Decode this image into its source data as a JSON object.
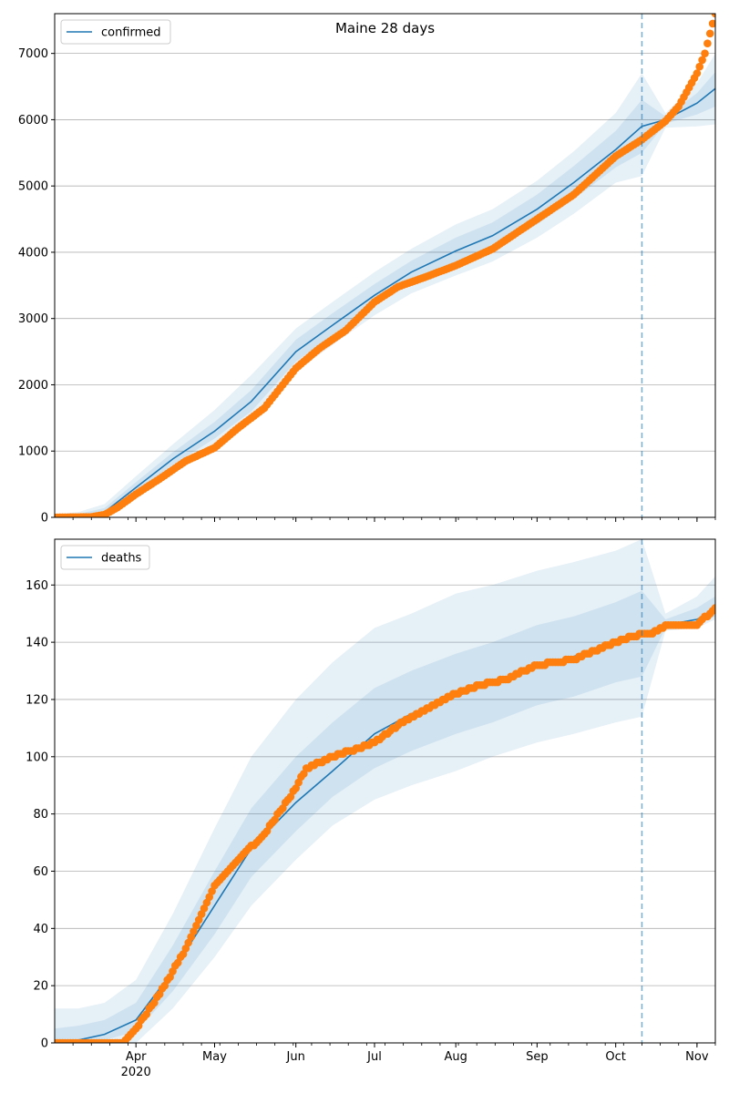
{
  "chart_data": [
    {
      "type": "line",
      "title": "Maine 28 days",
      "legend": {
        "label": "confirmed",
        "placement": "top-left"
      },
      "x_unit": "date",
      "x_range": [
        "2020-03-01",
        "2020-11-08"
      ],
      "ylim": [
        0,
        7600
      ],
      "yticks": [
        0,
        1000,
        2000,
        3000,
        4000,
        5000,
        6000,
        7000
      ],
      "forecast_start": "2020-10-11",
      "grid": "y",
      "colors": {
        "model": "#1f77b4",
        "observed": "#ff7f0e",
        "band": "#1f77b4"
      },
      "model": {
        "x": [
          "2020-03-01",
          "2020-03-10",
          "2020-03-20",
          "2020-04-01",
          "2020-04-15",
          "2020-05-01",
          "2020-05-15",
          "2020-06-01",
          "2020-06-15",
          "2020-07-01",
          "2020-07-15",
          "2020-08-01",
          "2020-08-15",
          "2020-09-01",
          "2020-09-15",
          "2020-10-01",
          "2020-10-11",
          "2020-10-20",
          "2020-11-01",
          "2020-11-08"
        ],
        "y": [
          5,
          10,
          80,
          450,
          880,
          1300,
          1750,
          2500,
          2900,
          3350,
          3700,
          4020,
          4250,
          4650,
          5050,
          5550,
          5900,
          6000,
          6250,
          6470
        ],
        "bands": [
          {
            "lower": [
              0,
              0,
              30,
              330,
              700,
              1080,
              1450,
              2200,
              2600,
              3050,
              3380,
              3650,
              3860,
              4220,
              4580,
              5050,
              5150,
              5880,
              5900,
              5930
            ],
            "upper": [
              50,
              80,
              200,
              620,
              1100,
              1620,
              2150,
              2850,
              3250,
              3700,
              4050,
              4420,
              4650,
              5080,
              5520,
              6100,
              6700,
              6100,
              6550,
              7000
            ]
          },
          {
            "lower": [
              0,
              0,
              50,
              390,
              790,
              1190,
              1600,
              2350,
              2750,
              3200,
              3540,
              3830,
              4050,
              4420,
              4800,
              5280,
              5500,
              5940,
              6080,
              6200
            ],
            "upper": [
              30,
              50,
              140,
              530,
              980,
              1440,
              1920,
              2680,
              3080,
              3520,
              3870,
              4220,
              4450,
              4870,
              5300,
              5830,
              6300,
              6050,
              6400,
              6720
            ]
          }
        ]
      },
      "observed": {
        "x": [
          "2020-03-01",
          "2020-03-15",
          "2020-03-20",
          "2020-03-25",
          "2020-04-01",
          "2020-04-10",
          "2020-04-20",
          "2020-05-01",
          "2020-05-10",
          "2020-05-20",
          "2020-06-01",
          "2020-06-10",
          "2020-06-20",
          "2020-07-01",
          "2020-07-10",
          "2020-07-20",
          "2020-08-01",
          "2020-08-15",
          "2020-09-01",
          "2020-09-15",
          "2020-10-01",
          "2020-10-11",
          "2020-10-20",
          "2020-10-25",
          "2020-11-01",
          "2020-11-04",
          "2020-11-08"
        ],
        "y": [
          0,
          5,
          40,
          150,
          350,
          580,
          850,
          1050,
          1350,
          1650,
          2250,
          2550,
          2820,
          3250,
          3480,
          3620,
          3800,
          4050,
          4500,
          4870,
          5450,
          5700,
          5980,
          6200,
          6700,
          7000,
          7600
        ]
      }
    },
    {
      "type": "line",
      "legend": {
        "label": "deaths",
        "placement": "top-left"
      },
      "x_unit": "date",
      "x_range": [
        "2020-03-01",
        "2020-11-08"
      ],
      "ylim": [
        0,
        176
      ],
      "yticks": [
        0,
        20,
        40,
        60,
        80,
        100,
        120,
        140,
        160
      ],
      "xticks": [
        {
          "date": "2020-04-01",
          "label": "Apr",
          "sublabel": "2020"
        },
        {
          "date": "2020-05-01",
          "label": "May"
        },
        {
          "date": "2020-06-01",
          "label": "Jun"
        },
        {
          "date": "2020-07-01",
          "label": "Jul"
        },
        {
          "date": "2020-08-01",
          "label": "Aug"
        },
        {
          "date": "2020-09-01",
          "label": "Sep"
        },
        {
          "date": "2020-10-01",
          "label": "Oct"
        },
        {
          "date": "2020-11-01",
          "label": "Nov"
        }
      ],
      "forecast_start": "2020-10-11",
      "grid": "y",
      "colors": {
        "model": "#1f77b4",
        "observed": "#ff7f0e",
        "band": "#1f77b4"
      },
      "model": {
        "x": [
          "2020-03-01",
          "2020-03-10",
          "2020-03-20",
          "2020-04-01",
          "2020-04-15",
          "2020-05-01",
          "2020-05-15",
          "2020-06-01",
          "2020-06-15",
          "2020-07-01",
          "2020-07-15",
          "2020-08-01",
          "2020-08-15",
          "2020-09-01",
          "2020-09-15",
          "2020-10-01",
          "2020-10-11",
          "2020-10-20",
          "2020-11-01",
          "2020-11-08"
        ],
        "y": [
          0,
          1,
          3,
          8,
          25,
          48,
          68,
          84,
          95,
          108,
          115,
          121,
          126,
          132,
          135,
          140,
          143,
          146,
          148,
          151
        ],
        "bands": [
          {
            "lower": [
              0,
              0,
              0,
              0,
              12,
              30,
              48,
              64,
              76,
              85,
              90,
              95,
              100,
              105,
              108,
              112,
              114,
              144,
              145,
              148
            ],
            "upper": [
              12,
              12,
              14,
              22,
              45,
              75,
              100,
              120,
              133,
              145,
              150,
              157,
              160,
              165,
              168,
              172,
              176,
              150,
              156,
              163
            ]
          },
          {
            "lower": [
              0,
              0,
              1,
              4,
              18,
              38,
              58,
              74,
              86,
              96,
              102,
              108,
              112,
              118,
              121,
              126,
              128,
              145,
              146,
              149
            ],
            "upper": [
              5,
              6,
              8,
              14,
              34,
              60,
              82,
              100,
              112,
              124,
              130,
              136,
              140,
              146,
              149,
              154,
              158,
              148,
              152,
              156
            ]
          }
        ]
      },
      "observed": {
        "x": [
          "2020-03-01",
          "2020-03-27",
          "2020-04-01",
          "2020-04-10",
          "2020-04-20",
          "2020-05-01",
          "2020-05-10",
          "2020-05-20",
          "2020-06-01",
          "2020-06-05",
          "2020-06-15",
          "2020-06-25",
          "2020-07-01",
          "2020-07-10",
          "2020-07-20",
          "2020-08-01",
          "2020-08-10",
          "2020-08-20",
          "2020-09-01",
          "2020-09-15",
          "2020-10-01",
          "2020-10-11",
          "2020-10-15",
          "2020-10-20",
          "2020-11-01",
          "2020-11-08"
        ],
        "y": [
          0,
          0,
          5,
          17,
          33,
          55,
          64,
          73,
          89,
          96,
          100,
          103,
          105,
          111,
          116,
          122,
          125,
          127,
          132,
          134,
          140,
          143,
          143,
          146,
          146,
          152
        ]
      }
    }
  ]
}
